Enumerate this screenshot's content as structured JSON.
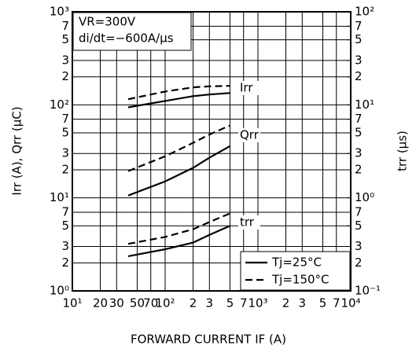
{
  "chart_data": {
    "type": "line",
    "x_title": "FORWARD CURRENT IF (A)",
    "y_title": "Irr (A), Qrr (μC)",
    "y2_title": "trr (μs)",
    "annotations": [
      "VR=300V",
      "di/dt=−600A/μs"
    ],
    "log_x": true,
    "log_y": true,
    "grid": true,
    "legend_position": "lower right",
    "xlim": [
      10,
      10000
    ],
    "xticks": [
      {
        "value": 10,
        "label": "10¹"
      },
      20,
      30,
      50,
      70,
      {
        "value": 100,
        "label": "10²"
      },
      {
        "value": 200,
        "label": "2"
      },
      {
        "value": 300,
        "label": "3"
      },
      {
        "value": 500,
        "label": "5"
      },
      {
        "value": 700,
        "label": "7"
      },
      {
        "value": 1000,
        "label": "10³"
      },
      {
        "value": 2000,
        "label": "2"
      },
      {
        "value": 3000,
        "label": "3"
      },
      {
        "value": 5000,
        "label": "5"
      },
      {
        "value": 7000,
        "label": "7"
      },
      {
        "value": 10000,
        "label": "10⁴"
      }
    ],
    "ylim": [
      1,
      1000
    ],
    "yticks": [
      1000,
      1,
      2,
      3,
      5,
      7,
      {
        "value": 10,
        "label": "10¹"
      },
      {
        "value": 20,
        "label": "2"
      },
      {
        "value": 30,
        "label": "3"
      },
      {
        "value": 50,
        "label": "5"
      },
      {
        "value": 70,
        "label": "7"
      },
      {
        "value": 100,
        "label": "10²"
      },
      {
        "value": 200,
        "label": "2"
      },
      {
        "value": 300,
        "label": "3"
      },
      {
        "value": 500,
        "label": "5"
      },
      {
        "value": 700,
        "label": "7"
      }
    ],
    "ytick_top_label": "10³",
    "ytick_bottom_label": "10⁰",
    "y2lim": [
      0.1,
      100
    ],
    "y2ticks": [
      {
        "value": 0.1,
        "label": "10⁻¹"
      },
      {
        "value": 0.2,
        "label": "2"
      },
      {
        "value": 0.3,
        "label": "3"
      },
      {
        "value": 0.5,
        "label": "5"
      },
      {
        "value": 0.7,
        "label": "7"
      },
      {
        "value": 1,
        "label": "10⁰"
      },
      2,
      3,
      5,
      7,
      {
        "value": 10,
        "label": "10¹"
      },
      {
        "value": 20,
        "label": "2"
      },
      {
        "value": 30,
        "label": "3"
      },
      {
        "value": 50,
        "label": "5"
      },
      {
        "value": 70,
        "label": "7"
      },
      {
        "value": 100,
        "label": "10²"
      }
    ],
    "legend": [
      "Tj=25°C",
      "Tj=150°C"
    ],
    "line_styles": [
      "solid",
      "dashed"
    ],
    "color": "#000000",
    "x": [
      40,
      100,
      200,
      300,
      500
    ],
    "curves": [
      {
        "label": "Irr",
        "axis": "y",
        "series": [
          {
            "values": [
              94,
              110,
              124,
              129,
              134
            ]
          },
          {
            "values": [
              115,
              139,
              154,
              158,
              160
            ]
          }
        ]
      },
      {
        "label": "Qrr",
        "axis": "y",
        "series": [
          {
            "values": [
              10.6,
              15,
              21,
              27,
              36
            ]
          },
          {
            "values": [
              19.4,
              28,
              39,
              48,
              60
            ]
          }
        ]
      },
      {
        "label": "trr",
        "axis": "y2",
        "series": [
          {
            "values": [
              0.236,
              0.28,
              0.33,
              0.4,
              0.5
            ]
          },
          {
            "values": [
              0.32,
              0.38,
              0.46,
              0.55,
              0.68
            ]
          }
        ]
      }
    ]
  }
}
